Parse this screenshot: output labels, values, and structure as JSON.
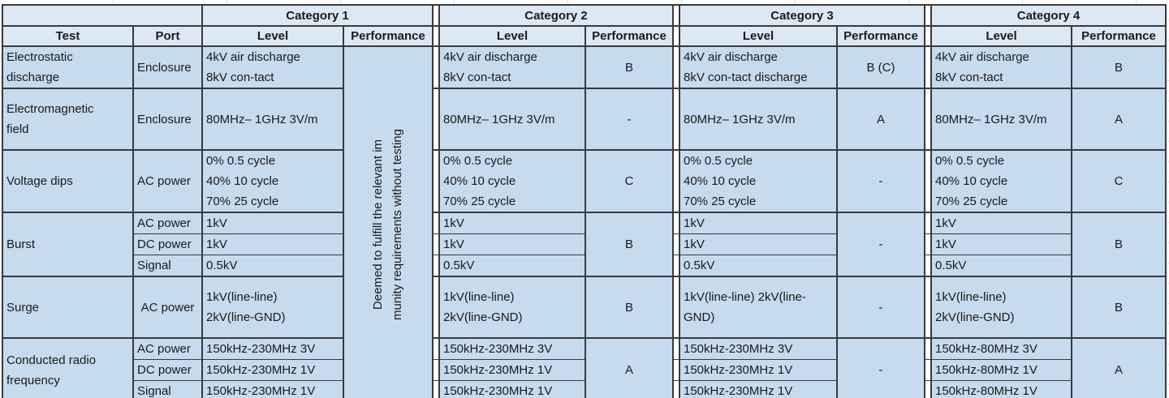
{
  "colors": {
    "table_header_bg": "#dce8f4",
    "table_body_bg": "#c6dbee",
    "table_border": "#3a3a3a",
    "sheet_gridline": "#d9d9d9"
  },
  "categories": [
    "Category 1",
    "Category 2",
    "Category 3",
    "Category 4"
  ],
  "col_headers": {
    "test": "Test",
    "port": "Port",
    "level": "Level",
    "performance": "Performance"
  },
  "cat1_note": {
    "line1": "Deemed to fulfill the relevant im",
    "line2": "munity requirements without testing"
  },
  "rows": {
    "esd": {
      "test": "Electrostatic\ndischarge",
      "port": "Enclosure",
      "cat1_level": "4kV air discharge\n8kV con-tact",
      "cat2_level": "4kV air discharge\n8kV con-tact",
      "cat2_perf": "B",
      "cat3_level": "4kV air discharge\n8kV con-tact discharge",
      "cat3_perf": "B  (C)",
      "cat4_level": "4kV air discharge\n8kV con-tact",
      "cat4_perf": "B"
    },
    "emf": {
      "test": "Electromagnetic\nfield",
      "port": "Enclosure",
      "cat1_level": "80MHz– 1GHz 3V/m",
      "cat2_level": "80MHz– 1GHz 3V/m",
      "cat2_perf": "-",
      "cat3_level": "80MHz– 1GHz 3V/m",
      "cat3_perf": "A",
      "cat4_level": "80MHz– 1GHz 3V/m",
      "cat4_perf": "A"
    },
    "dips": {
      "test": "Voltage dips",
      "port": "AC power",
      "cat1_level": "0% 0.5 cycle\n40% 10 cycle\n70% 25 cycle",
      "cat2_level": "0% 0.5 cycle\n40% 10 cycle\n70% 25 cycle",
      "cat2_perf": "C",
      "cat3_level": "0% 0.5 cycle\n40% 10 cycle\n70% 25 cycle",
      "cat3_perf": "-",
      "cat4_level": "0% 0.5 cycle\n40% 10 cycle\n70% 25 cycle",
      "cat4_perf": "C"
    },
    "burst": {
      "test": "Burst",
      "ports": [
        "AC power",
        "DC power",
        "Signal"
      ],
      "cat1_levels": [
        "1kV",
        "1kV",
        "0.5kV"
      ],
      "cat2_levels": [
        "1kV",
        "1kV",
        "0.5kV"
      ],
      "cat2_perf": "B",
      "cat3_levels": [
        "1kV",
        "1kV",
        "0.5kV"
      ],
      "cat3_perf": "-",
      "cat4_levels": [
        "1kV",
        "1kV",
        "0.5kV"
      ],
      "cat4_perf": "B"
    },
    "surge": {
      "test": "Surge",
      "port": "AC power",
      "cat1_level": "1kV(line-line)\n2kV(line-GND)",
      "cat2_level": "1kV(line-line)\n2kV(line-GND)",
      "cat2_perf": "B",
      "cat3_level": "1kV(line-line) 2kV(line-GND)",
      "cat3_perf": "-",
      "cat4_level": "1kV(line-line)\n2kV(line-GND)",
      "cat4_perf": "B"
    },
    "crf": {
      "test": "Conducted radio\nfrequency",
      "ports": [
        "AC power",
        "DC power",
        "Signal"
      ],
      "cat1_levels": [
        "150kHz-230MHz 3V",
        "150kHz-230MHz 1V",
        "150kHz-230MHz 1V"
      ],
      "cat2_levels": [
        "150kHz-230MHz 3V",
        "150kHz-230MHz 1V",
        "150kHz-230MHz 1V"
      ],
      "cat2_perf": "A",
      "cat3_levels": [
        "150kHz-230MHz 3V",
        "150kHz-230MHz 1V",
        "150kHz-230MHz 1V"
      ],
      "cat3_perf": "-",
      "cat4_levels": [
        "150kHz-80MHz 3V",
        "150kHz-80MHz 1V",
        "150kHz-80MHz 1V"
      ],
      "cat4_perf": "A"
    }
  }
}
